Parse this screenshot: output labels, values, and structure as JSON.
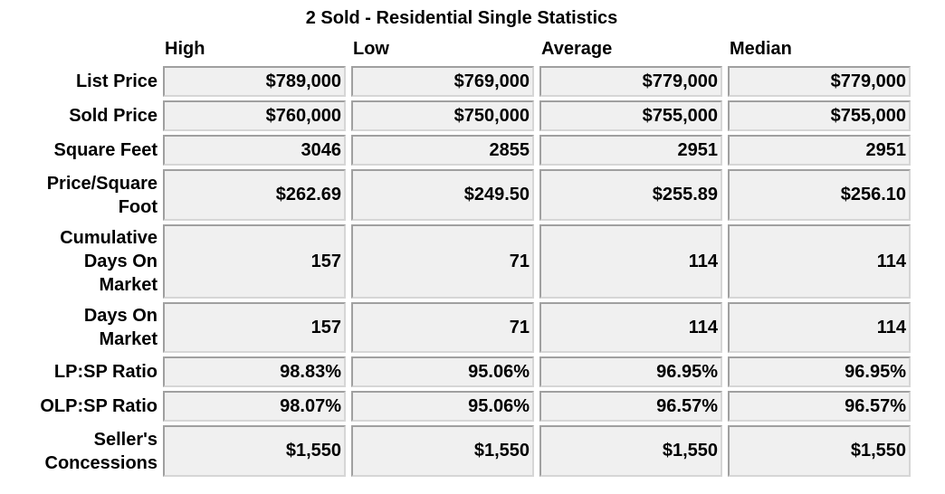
{
  "title": "2 Sold - Residential Single Statistics",
  "columns": [
    "High",
    "Low",
    "Average",
    "Median"
  ],
  "rows": [
    {
      "label": "List Price",
      "values": [
        "$789,000",
        "$769,000",
        "$779,000",
        "$779,000"
      ]
    },
    {
      "label": "Sold Price",
      "values": [
        "$760,000",
        "$750,000",
        "$755,000",
        "$755,000"
      ]
    },
    {
      "label": "Square Feet",
      "values": [
        "3046",
        "2855",
        "2951",
        "2951"
      ]
    },
    {
      "label": "Price/Square Foot",
      "values": [
        "$262.69",
        "$249.50",
        "$255.89",
        "$256.10"
      ]
    },
    {
      "label": "Cumulative Days On Market",
      "values": [
        "157",
        "71",
        "114",
        "114"
      ]
    },
    {
      "label": "Days On Market",
      "values": [
        "157",
        "71",
        "114",
        "114"
      ]
    },
    {
      "label": "LP:SP Ratio",
      "values": [
        "98.83%",
        "95.06%",
        "96.95%",
        "96.95%"
      ]
    },
    {
      "label": "OLP:SP Ratio",
      "values": [
        "98.07%",
        "95.06%",
        "96.57%",
        "96.57%"
      ]
    },
    {
      "label": "Seller's Concessions",
      "values": [
        "$1,550",
        "$1,550",
        "$1,550",
        "$1,550"
      ]
    }
  ]
}
